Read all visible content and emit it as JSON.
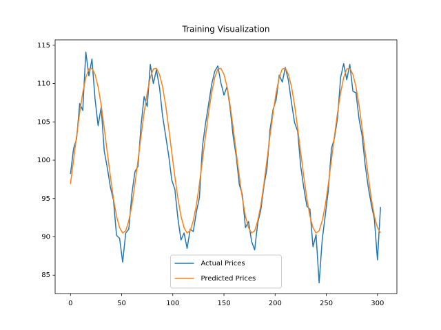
{
  "chart_data": {
    "type": "line",
    "title": "Training Visualization",
    "x": [
      0,
      3,
      6,
      9,
      12,
      15,
      18,
      21,
      24,
      27,
      30,
      33,
      36,
      39,
      42,
      45,
      48,
      51,
      54,
      57,
      60,
      63,
      66,
      69,
      72,
      75,
      78,
      81,
      84,
      87,
      90,
      93,
      96,
      99,
      102,
      105,
      108,
      111,
      114,
      117,
      120,
      123,
      126,
      129,
      132,
      135,
      138,
      141,
      144,
      147,
      150,
      153,
      156,
      159,
      162,
      165,
      168,
      171,
      174,
      177,
      180,
      183,
      186,
      189,
      192,
      195,
      198,
      201,
      204,
      207,
      210,
      213,
      216,
      219,
      222,
      225,
      228,
      231,
      234,
      237,
      240,
      243,
      246,
      249,
      252,
      255,
      258,
      261,
      264,
      267,
      270,
      273,
      276,
      279,
      282,
      285,
      288,
      291,
      294,
      297,
      300,
      303
    ],
    "series": [
      {
        "name": "Actual Prices",
        "color": "#1f77b4",
        "values": [
          98.2,
          101.5,
          102.8,
          107.4,
          106.5,
          114.1,
          111.0,
          113.2,
          108.0,
          104.5,
          106.9,
          101.2,
          99.0,
          96.5,
          94.8,
          90.2,
          89.8,
          86.7,
          90.5,
          91.0,
          95.6,
          98.5,
          99.2,
          104.6,
          108.3,
          107.0,
          112.5,
          110.0,
          111.8,
          109.5,
          105.8,
          103.2,
          100.6,
          97.4,
          96.2,
          92.4,
          89.6,
          90.5,
          88.5,
          91.0,
          90.7,
          93.2,
          95.1,
          101.8,
          104.8,
          107.3,
          109.9,
          111.6,
          112.3,
          110.1,
          108.5,
          109.6,
          106.8,
          103.1,
          100.5,
          96.8,
          95.5,
          91.2,
          92.0,
          89.4,
          88.3,
          91.8,
          93.5,
          96.6,
          98.9,
          104.0,
          106.6,
          107.9,
          111.1,
          110.2,
          112.1,
          110.4,
          107.5,
          104.9,
          103.8,
          99.2,
          96.4,
          94.0,
          93.6,
          88.7,
          90.3,
          84.0,
          89.6,
          92.8,
          96.1,
          101.5,
          102.9,
          105.5,
          110.8,
          112.6,
          110.5,
          112.5,
          109.0,
          108.8,
          105.4,
          103.2,
          99.4,
          96.5,
          94.2,
          92.3,
          87.0,
          93.9
        ]
      },
      {
        "name": "Predicted Prices",
        "color": "#ff7f0e",
        "values": [
          96.9,
          100.0,
          103.2,
          106.2,
          108.8,
          110.8,
          111.9,
          112.0,
          111.2,
          109.6,
          107.2,
          104.2,
          101.0,
          97.9,
          95.0,
          92.7,
          91.2,
          90.5,
          90.8,
          92.1,
          94.1,
          96.9,
          100.0,
          103.2,
          106.2,
          108.8,
          110.8,
          111.9,
          112.0,
          111.2,
          109.6,
          107.2,
          104.2,
          101.0,
          97.9,
          95.0,
          92.7,
          91.2,
          90.5,
          90.8,
          92.1,
          94.1,
          96.9,
          100.0,
          103.2,
          106.2,
          108.8,
          110.8,
          111.9,
          112.0,
          111.2,
          109.6,
          107.2,
          104.2,
          101.0,
          97.9,
          95.0,
          92.7,
          91.2,
          90.5,
          90.8,
          92.1,
          94.1,
          96.9,
          100.0,
          103.2,
          106.2,
          108.8,
          110.8,
          111.9,
          112.0,
          111.2,
          109.6,
          107.2,
          104.2,
          101.0,
          97.9,
          95.0,
          92.7,
          91.2,
          90.5,
          90.8,
          92.1,
          94.1,
          96.9,
          100.0,
          103.2,
          106.2,
          108.8,
          110.8,
          111.9,
          112.0,
          111.2,
          109.6,
          107.2,
          104.2,
          101.0,
          97.9,
          95.0,
          92.7,
          91.2,
          90.5
        ]
      }
    ],
    "xlim": [
      -15,
      319
    ],
    "ylim": [
      82.6,
      115.7
    ],
    "xticks": [
      0,
      50,
      100,
      150,
      200,
      250,
      300
    ],
    "yticks": [
      85,
      90,
      95,
      100,
      105,
      110,
      115
    ],
    "legend": "lower center"
  }
}
